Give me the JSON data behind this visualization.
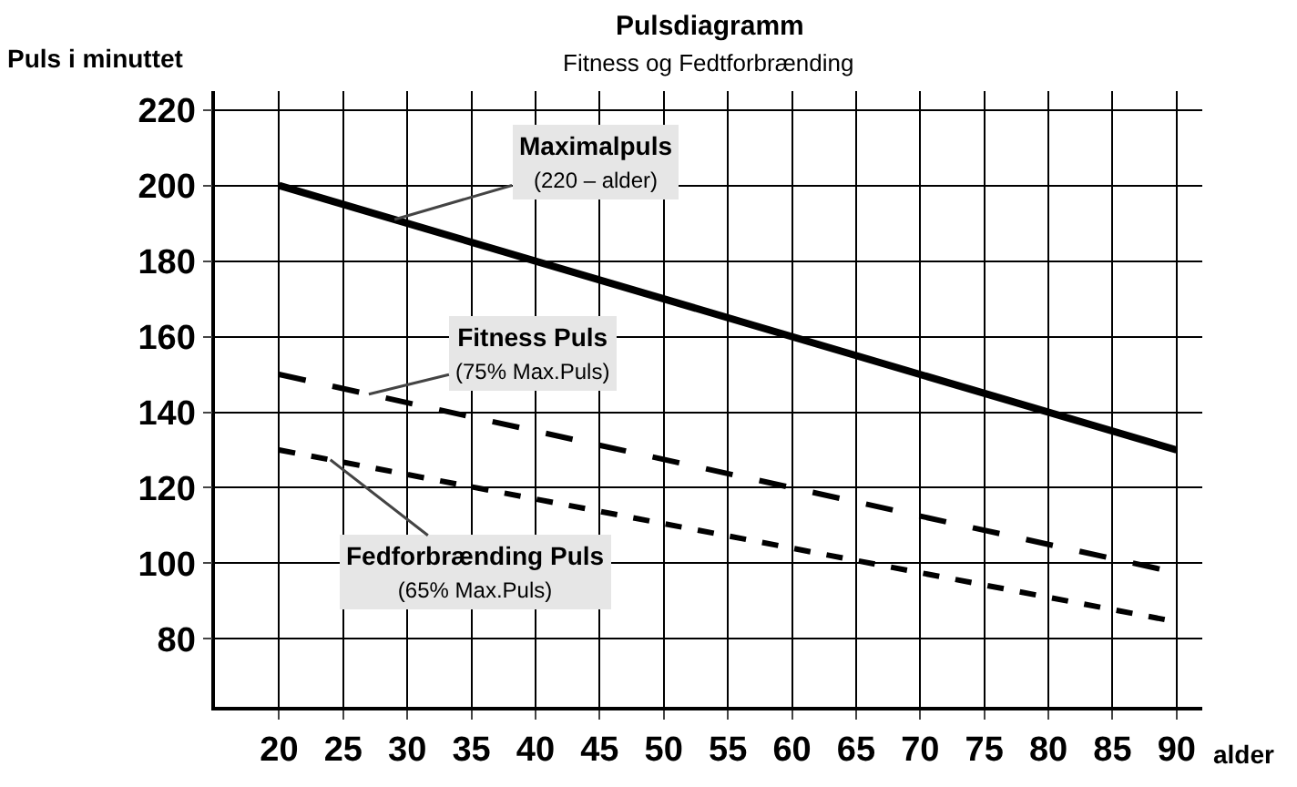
{
  "chart_data": {
    "type": "line",
    "title": "Pulsdiagramm",
    "subtitle": "Fitness og Fedtforbrænding",
    "ylabel": "Puls i minuttet",
    "xlabel": "alder",
    "xlim": [
      15,
      92
    ],
    "xticks": [
      20,
      25,
      30,
      35,
      40,
      45,
      50,
      55,
      60,
      65,
      70,
      75,
      80,
      85,
      90
    ],
    "ylim": [
      62,
      225
    ],
    "yticks": [
      80,
      100,
      120,
      140,
      160,
      180,
      200,
      220
    ],
    "x": [
      20,
      90
    ],
    "grid": true,
    "marker": "none",
    "series": [
      {
        "color": "#000000",
        "line_style": "solid",
        "values": [
          200,
          130
        ]
      },
      {
        "color": "#000000",
        "line_style": "dashed",
        "values": [
          150,
          97.5
        ]
      },
      {
        "color": "#000000",
        "line_style": "dashed",
        "values": [
          130,
          84.5
        ]
      }
    ],
    "annotations": [
      {
        "text": "Maximalpuls\n(220 – alder)",
        "x": 29,
        "y": 191.0
      },
      {
        "text": "Fitness Puls\n(75% Max.Puls)",
        "x": 27,
        "y": 144.75
      },
      {
        "text": "Fedforbrænding Puls\n(65% Max.Puls)",
        "x": 24,
        "y": 127.4
      }
    ]
  }
}
